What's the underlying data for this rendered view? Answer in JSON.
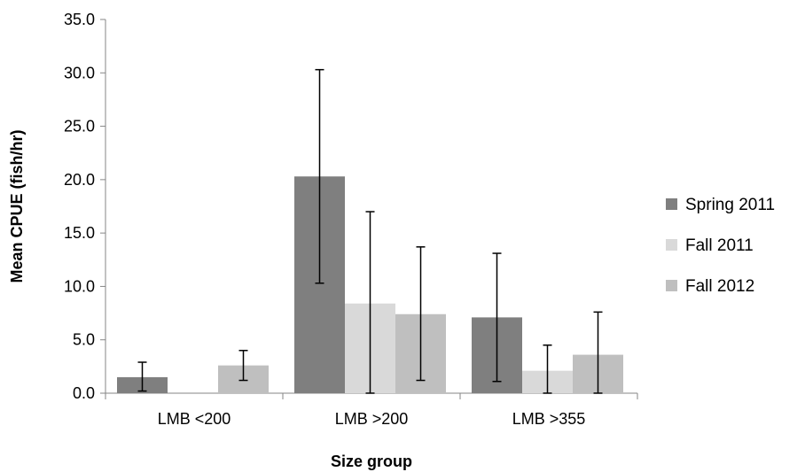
{
  "chart_data": {
    "type": "bar",
    "title": "",
    "xlabel": "Size group",
    "ylabel": "Mean CPUE (fish/hr)",
    "ylim": [
      0,
      35
    ],
    "y_ticks": [
      "0.0",
      "5.0",
      "10.0",
      "15.0",
      "20.0",
      "25.0",
      "30.0",
      "35.0"
    ],
    "categories": [
      "LMB <200",
      "LMB >200",
      "LMB >355"
    ],
    "series": [
      {
        "name": "Spring 2011",
        "color": "#7f7f7f",
        "values": [
          1.5,
          20.3,
          7.1
        ],
        "err_low": [
          0.2,
          10.3,
          1.1
        ],
        "err_high": [
          2.9,
          30.3,
          13.1
        ]
      },
      {
        "name": "Fall 2011",
        "color": "#d9d9d9",
        "values": [
          0.0,
          8.4,
          2.1
        ],
        "err_low": [
          null,
          0.0,
          0.0
        ],
        "err_high": [
          null,
          17.0,
          4.5
        ]
      },
      {
        "name": "Fall 2012",
        "color": "#bfbfbf",
        "values": [
          2.6,
          7.4,
          3.6
        ],
        "err_low": [
          1.2,
          1.2,
          0.0
        ],
        "err_high": [
          4.0,
          13.7,
          7.6
        ]
      }
    ],
    "grid": false,
    "legend_position": "right",
    "error_bars": true
  }
}
